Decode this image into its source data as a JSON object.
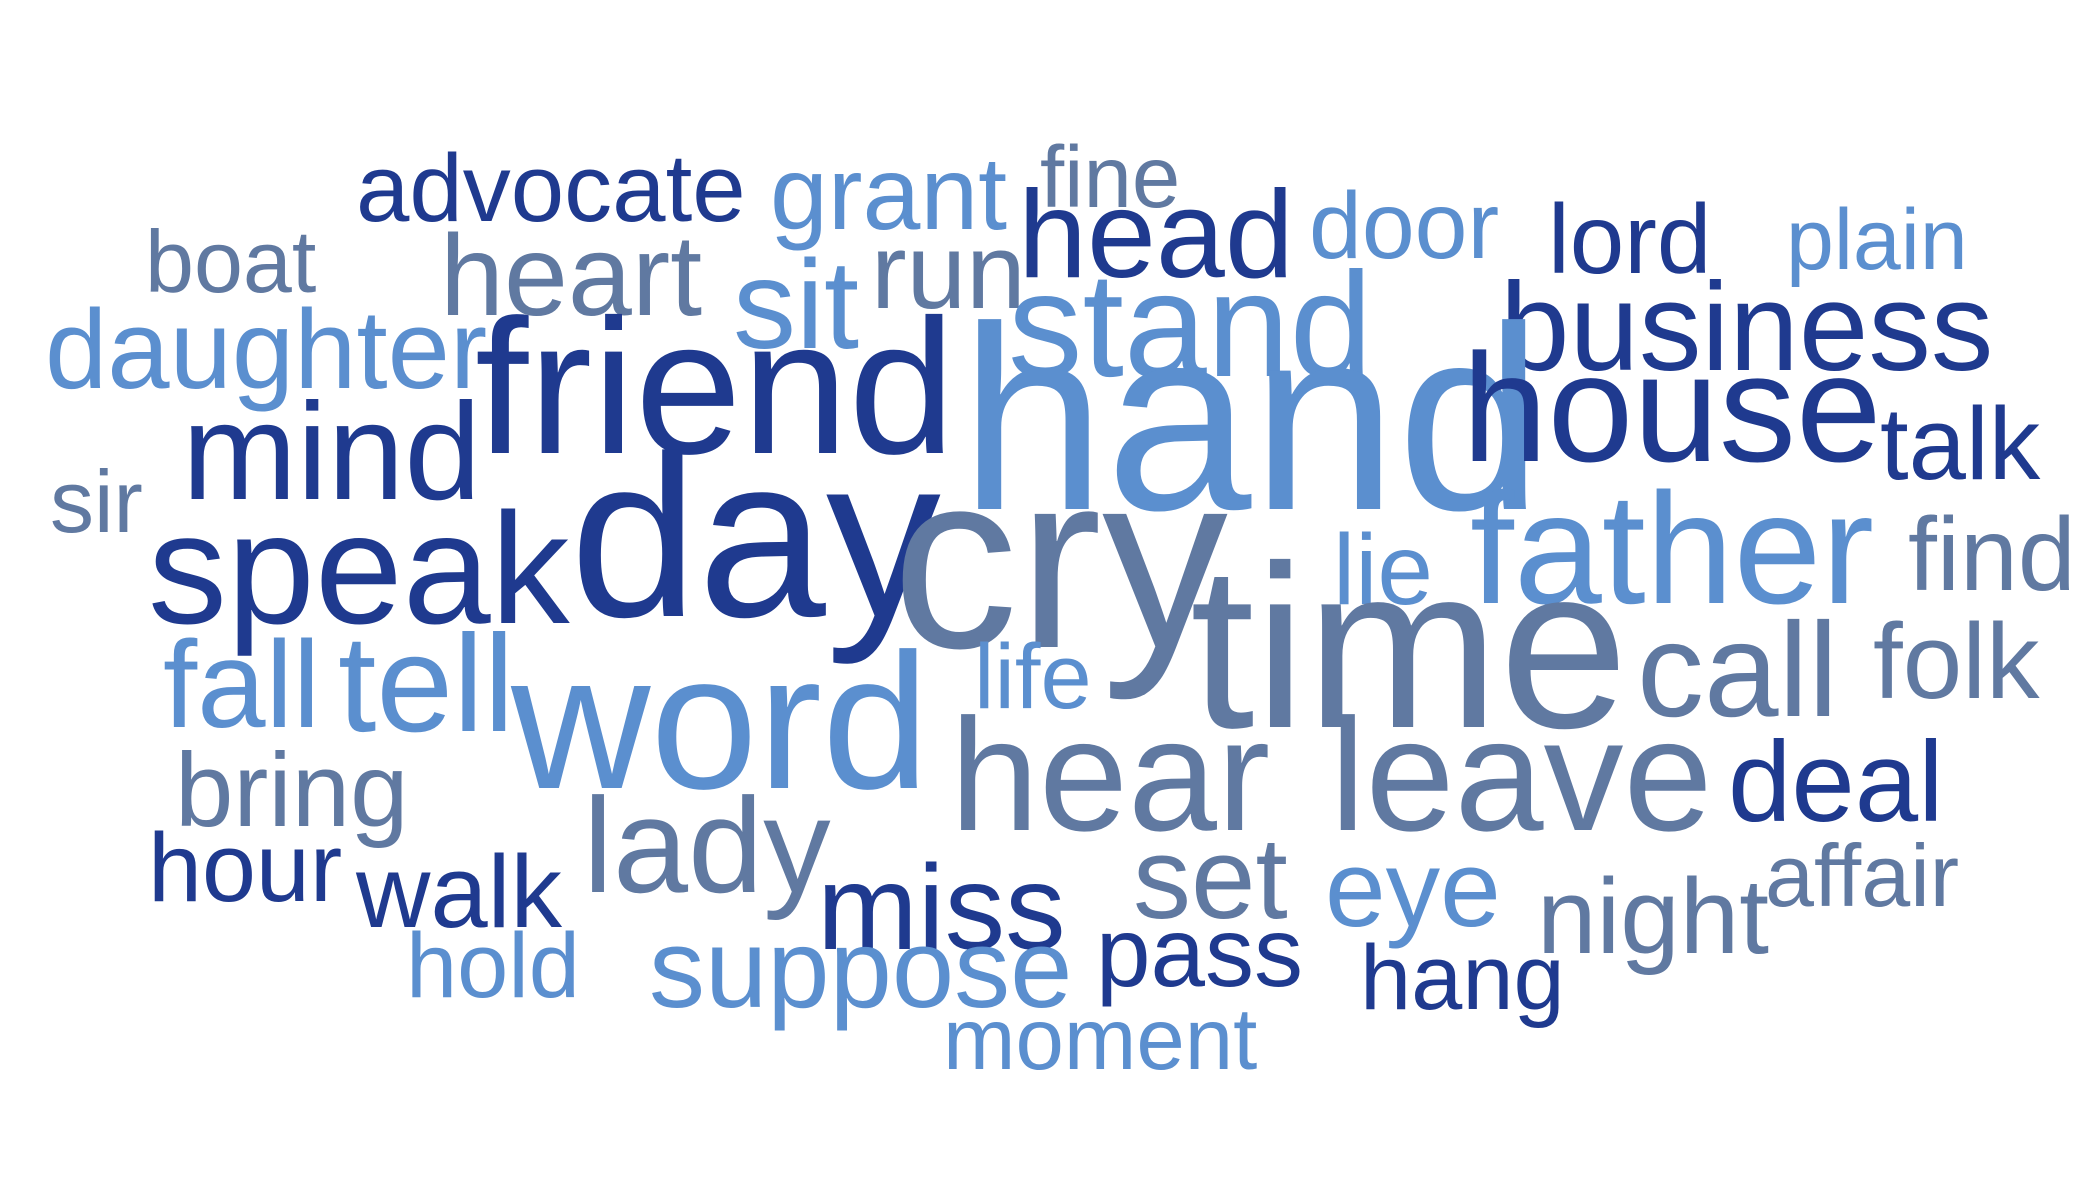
{
  "palette": {
    "navy": "#1f3a8f",
    "slate": "#6079a1",
    "sky": "#5b8fcf"
  },
  "words": [
    {
      "text": "advocate",
      "tone": "navy"
    },
    {
      "text": "grant",
      "tone": "sky"
    },
    {
      "text": "fine",
      "tone": "slate"
    },
    {
      "text": "boat",
      "tone": "slate"
    },
    {
      "text": "head",
      "tone": "navy"
    },
    {
      "text": "door",
      "tone": "sky"
    },
    {
      "text": "lord",
      "tone": "navy"
    },
    {
      "text": "plain",
      "tone": "sky"
    },
    {
      "text": "heart",
      "tone": "slate"
    },
    {
      "text": "run",
      "tone": "slate"
    },
    {
      "text": "sit",
      "tone": "sky"
    },
    {
      "text": "daughter",
      "tone": "sky"
    },
    {
      "text": "stand",
      "tone": "sky"
    },
    {
      "text": "business",
      "tone": "navy"
    },
    {
      "text": "friend",
      "tone": "navy"
    },
    {
      "text": "hand",
      "tone": "sky"
    },
    {
      "text": "house",
      "tone": "navy"
    },
    {
      "text": "mind",
      "tone": "navy"
    },
    {
      "text": "talk",
      "tone": "navy"
    },
    {
      "text": "sir",
      "tone": "slate"
    },
    {
      "text": "speak",
      "tone": "navy"
    },
    {
      "text": "day",
      "tone": "navy"
    },
    {
      "text": "cry",
      "tone": "slate"
    },
    {
      "text": "lie",
      "tone": "sky"
    },
    {
      "text": "father",
      "tone": "sky"
    },
    {
      "text": "find",
      "tone": "slate"
    },
    {
      "text": "time",
      "tone": "slate"
    },
    {
      "text": "fall",
      "tone": "sky"
    },
    {
      "text": "tell",
      "tone": "sky"
    },
    {
      "text": "word",
      "tone": "sky"
    },
    {
      "text": "life",
      "tone": "sky"
    },
    {
      "text": "call",
      "tone": "slate"
    },
    {
      "text": "folk",
      "tone": "slate"
    },
    {
      "text": "hear",
      "tone": "slate"
    },
    {
      "text": "leave",
      "tone": "slate"
    },
    {
      "text": "deal",
      "tone": "navy"
    },
    {
      "text": "bring",
      "tone": "slate"
    },
    {
      "text": "lady",
      "tone": "slate"
    },
    {
      "text": "hour",
      "tone": "navy"
    },
    {
      "text": "walk",
      "tone": "navy"
    },
    {
      "text": "miss",
      "tone": "navy"
    },
    {
      "text": "set",
      "tone": "slate"
    },
    {
      "text": "eye",
      "tone": "sky"
    },
    {
      "text": "affair",
      "tone": "slate"
    },
    {
      "text": "night",
      "tone": "slate"
    },
    {
      "text": "pass",
      "tone": "navy"
    },
    {
      "text": "hold",
      "tone": "sky"
    },
    {
      "text": "suppose",
      "tone": "sky"
    },
    {
      "text": "hang",
      "tone": "navy"
    },
    {
      "text": "moment",
      "tone": "sky"
    }
  ]
}
